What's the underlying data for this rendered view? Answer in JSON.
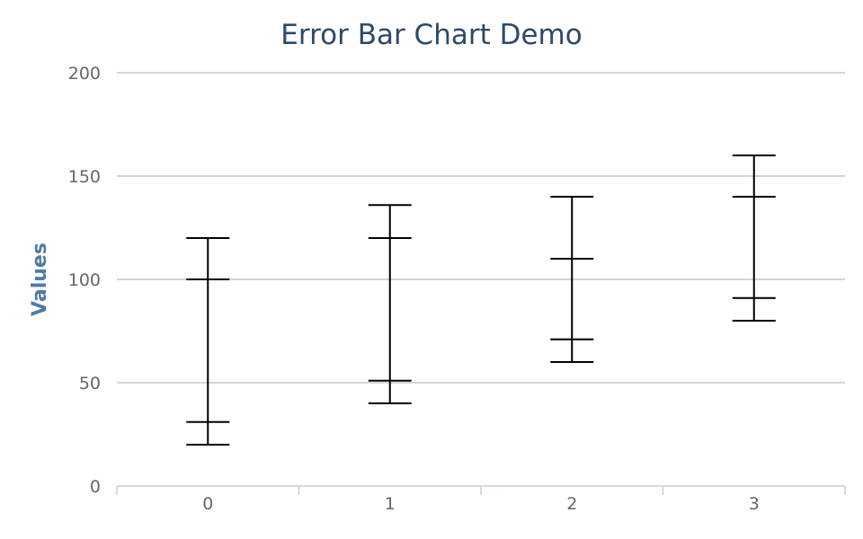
{
  "chart_data": {
    "type": "errorbar",
    "title": "Error Bar Chart Demo",
    "xlabel": "",
    "ylabel": "Values",
    "categories": [
      "0",
      "1",
      "2",
      "3"
    ],
    "ylim": [
      0,
      200
    ],
    "yticks": [
      0,
      50,
      100,
      150,
      200
    ],
    "grid": true,
    "colors": {
      "title": "#2b4a6b",
      "ylabel": "#4f7aa6",
      "ticks": "#666666",
      "grid": "#c3c7cc",
      "errorbars": "#000000"
    },
    "series": [
      {
        "outer": [
          {
            "x": "0",
            "low": 20,
            "high": 120
          },
          {
            "x": "1",
            "low": 40,
            "high": 136
          },
          {
            "x": "2",
            "low": 60,
            "high": 140
          },
          {
            "x": "3",
            "low": 80,
            "high": 160
          }
        ]
      },
      {
        "inner": [
          {
            "x": "0",
            "low": 31,
            "high": 100
          },
          {
            "x": "1",
            "low": 51,
            "high": 120
          },
          {
            "x": "2",
            "low": 71,
            "high": 110
          },
          {
            "x": "3",
            "low": 91,
            "high": 140
          }
        ]
      }
    ]
  }
}
